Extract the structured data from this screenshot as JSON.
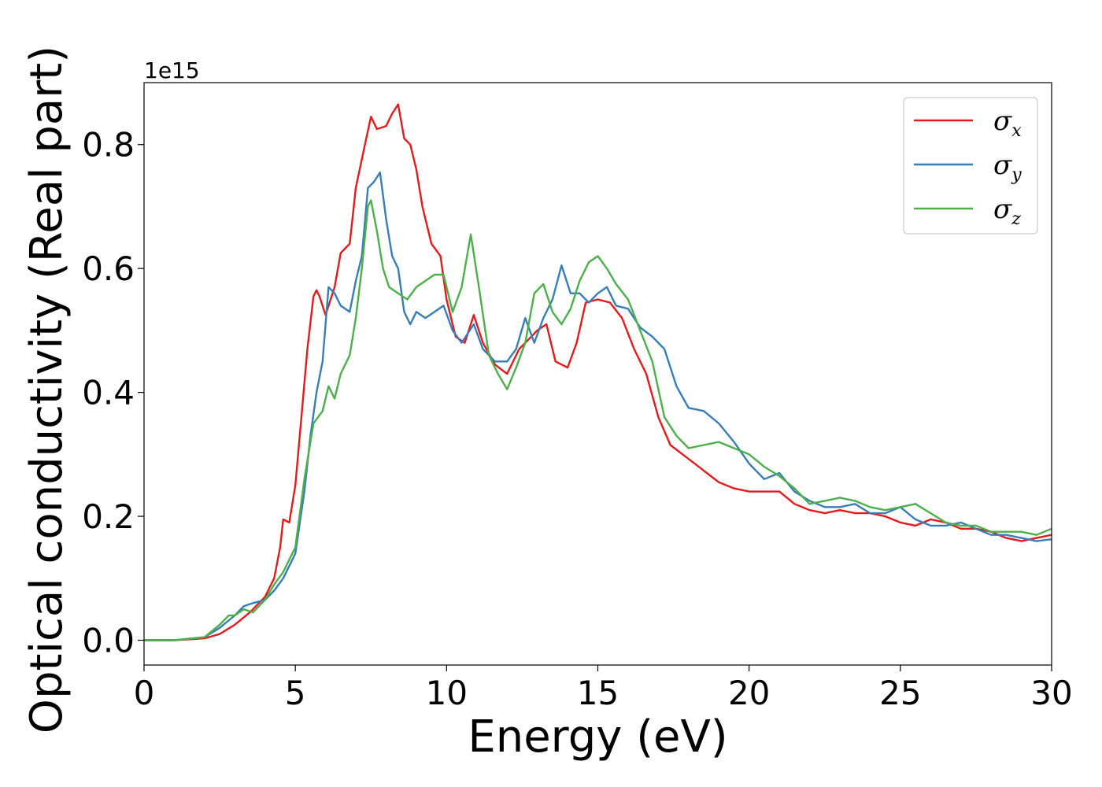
{
  "chart_data": {
    "type": "line",
    "xlabel": "Energy (eV)",
    "ylabel": "Optical conductivity (Real part)",
    "y_offset_label": "1e15",
    "xlim": [
      0,
      30
    ],
    "ylim": [
      -0.04,
      0.9
    ],
    "xticks": [
      0,
      5,
      10,
      15,
      20,
      25,
      30
    ],
    "xtick_labels": [
      "0",
      "5",
      "10",
      "15",
      "20",
      "25",
      "30"
    ],
    "yticks": [
      0.0,
      0.2,
      0.4,
      0.6,
      0.8
    ],
    "ytick_labels": [
      "0.0",
      "0.2",
      "0.4",
      "0.6",
      "0.8"
    ],
    "grid": false,
    "legend_position": "top-right",
    "series": [
      {
        "name": "σx",
        "symbol": "σ",
        "subscript": "x",
        "color": "#e41a1c",
        "x": [
          0,
          1,
          2,
          2.5,
          3,
          3.5,
          4,
          4.3,
          4.5,
          4.6,
          4.8,
          5,
          5.2,
          5.4,
          5.6,
          5.7,
          5.8,
          6,
          6.3,
          6.5,
          6.8,
          7,
          7.3,
          7.5,
          7.7,
          8,
          8.2,
          8.4,
          8.6,
          8.8,
          9,
          9.2,
          9.5,
          9.8,
          10,
          10.3,
          10.6,
          10.9,
          11.2,
          11.6,
          12,
          12.4,
          12.8,
          13,
          13.3,
          13.6,
          14,
          14.3,
          14.6,
          15,
          15.4,
          15.8,
          16.2,
          16.6,
          17,
          17.4,
          17.8,
          18.2,
          18.6,
          19,
          19.5,
          20,
          20.5,
          21,
          21.5,
          22,
          22.5,
          23,
          23.5,
          24,
          24.5,
          25,
          25.5,
          26,
          26.5,
          27,
          27.5,
          28,
          28.5,
          29,
          29.5,
          30
        ],
        "y": [
          0.0,
          0.0,
          0.003,
          0.01,
          0.025,
          0.045,
          0.07,
          0.1,
          0.15,
          0.195,
          0.19,
          0.25,
          0.36,
          0.47,
          0.555,
          0.565,
          0.555,
          0.525,
          0.57,
          0.625,
          0.64,
          0.73,
          0.8,
          0.845,
          0.825,
          0.83,
          0.85,
          0.865,
          0.81,
          0.8,
          0.76,
          0.7,
          0.64,
          0.62,
          0.55,
          0.49,
          0.48,
          0.525,
          0.48,
          0.445,
          0.43,
          0.47,
          0.49,
          0.5,
          0.51,
          0.45,
          0.44,
          0.48,
          0.545,
          0.55,
          0.545,
          0.52,
          0.47,
          0.43,
          0.36,
          0.315,
          0.3,
          0.285,
          0.27,
          0.255,
          0.245,
          0.24,
          0.24,
          0.24,
          0.22,
          0.21,
          0.205,
          0.21,
          0.205,
          0.205,
          0.2,
          0.19,
          0.185,
          0.195,
          0.19,
          0.18,
          0.18,
          0.175,
          0.165,
          0.16,
          0.165,
          0.17
        ]
      },
      {
        "name": "σy",
        "symbol": "σ",
        "subscript": "y",
        "color": "#377eb8",
        "x": [
          0,
          1,
          2,
          2.5,
          3,
          3.3,
          3.6,
          4,
          4.3,
          4.6,
          5,
          5.3,
          5.5,
          5.7,
          5.9,
          6.1,
          6.3,
          6.5,
          6.8,
          7,
          7.2,
          7.4,
          7.6,
          7.8,
          8,
          8.2,
          8.4,
          8.6,
          8.8,
          9,
          9.3,
          9.6,
          9.9,
          10.2,
          10.5,
          10.9,
          11.2,
          11.6,
          12,
          12.3,
          12.6,
          12.9,
          13.2,
          13.5,
          13.8,
          14.1,
          14.4,
          14.7,
          15,
          15.3,
          15.6,
          16,
          16.4,
          16.8,
          17.2,
          17.6,
          18,
          18.5,
          19,
          19.5,
          20,
          20.5,
          21,
          21.5,
          22,
          22.5,
          23,
          23.5,
          24,
          24.5,
          25,
          25.5,
          26,
          26.5,
          27,
          27.5,
          28,
          28.5,
          29,
          29.5,
          30
        ],
        "y": [
          0.0,
          0.0,
          0.005,
          0.02,
          0.04,
          0.055,
          0.06,
          0.065,
          0.08,
          0.1,
          0.14,
          0.24,
          0.33,
          0.4,
          0.45,
          0.57,
          0.56,
          0.54,
          0.53,
          0.58,
          0.62,
          0.73,
          0.74,
          0.755,
          0.68,
          0.62,
          0.6,
          0.53,
          0.51,
          0.53,
          0.52,
          0.53,
          0.54,
          0.5,
          0.48,
          0.51,
          0.47,
          0.45,
          0.45,
          0.47,
          0.52,
          0.48,
          0.52,
          0.55,
          0.605,
          0.56,
          0.56,
          0.545,
          0.56,
          0.57,
          0.54,
          0.535,
          0.505,
          0.49,
          0.47,
          0.41,
          0.375,
          0.37,
          0.35,
          0.32,
          0.285,
          0.26,
          0.27,
          0.24,
          0.225,
          0.215,
          0.215,
          0.22,
          0.205,
          0.205,
          0.215,
          0.195,
          0.185,
          0.185,
          0.19,
          0.18,
          0.17,
          0.17,
          0.165,
          0.16,
          0.163
        ]
      },
      {
        "name": "σz",
        "symbol": "σ",
        "subscript": "z",
        "color": "#4daf4a",
        "x": [
          0,
          1,
          2,
          2.5,
          2.8,
          3,
          3.3,
          3.6,
          4,
          4.3,
          4.6,
          5,
          5.3,
          5.6,
          5.9,
          6.1,
          6.3,
          6.5,
          6.8,
          7,
          7.2,
          7.4,
          7.5,
          7.7,
          7.9,
          8.1,
          8.4,
          8.7,
          9,
          9.3,
          9.6,
          9.9,
          10.2,
          10.5,
          10.8,
          11.1,
          11.4,
          11.7,
          12,
          12.3,
          12.6,
          12.9,
          13.2,
          13.5,
          13.8,
          14.1,
          14.4,
          14.7,
          15,
          15.3,
          15.6,
          16,
          16.4,
          16.8,
          17.2,
          17.6,
          18,
          18.5,
          19,
          19.5,
          20,
          20.5,
          21,
          21.5,
          22,
          22.5,
          23,
          23.5,
          24,
          24.5,
          25,
          25.5,
          26,
          26.5,
          27,
          27.5,
          28,
          28.5,
          29,
          29.5,
          30
        ],
        "y": [
          0.0,
          0.0,
          0.005,
          0.025,
          0.04,
          0.04,
          0.05,
          0.045,
          0.065,
          0.09,
          0.11,
          0.15,
          0.26,
          0.35,
          0.37,
          0.41,
          0.39,
          0.43,
          0.46,
          0.52,
          0.6,
          0.7,
          0.71,
          0.66,
          0.6,
          0.57,
          0.56,
          0.55,
          0.57,
          0.58,
          0.59,
          0.59,
          0.53,
          0.57,
          0.655,
          0.56,
          0.46,
          0.43,
          0.405,
          0.44,
          0.48,
          0.56,
          0.575,
          0.53,
          0.51,
          0.535,
          0.58,
          0.61,
          0.62,
          0.6,
          0.575,
          0.55,
          0.5,
          0.45,
          0.36,
          0.33,
          0.31,
          0.315,
          0.32,
          0.31,
          0.3,
          0.28,
          0.265,
          0.245,
          0.22,
          0.225,
          0.23,
          0.225,
          0.215,
          0.21,
          0.215,
          0.22,
          0.205,
          0.19,
          0.185,
          0.185,
          0.175,
          0.175,
          0.175,
          0.17,
          0.18
        ]
      }
    ]
  }
}
